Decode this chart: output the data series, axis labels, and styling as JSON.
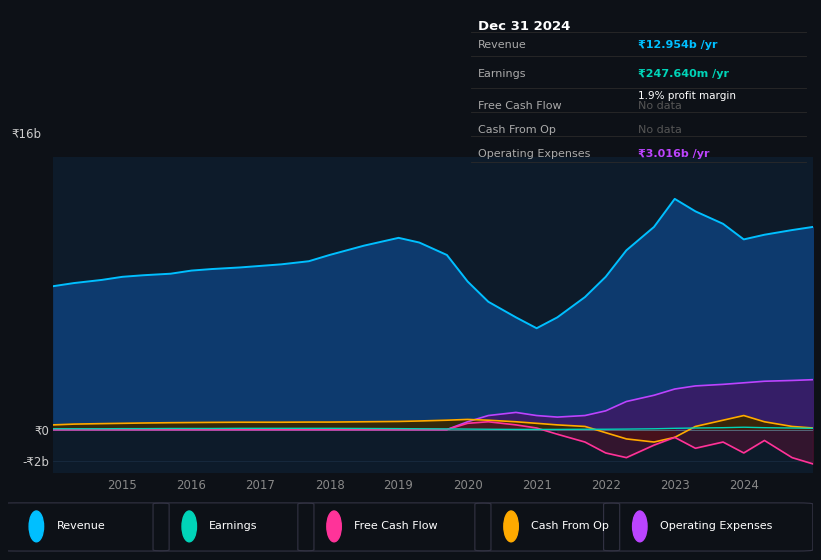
{
  "bg_color": "#0d1117",
  "plot_bg_color": "#0d1b2a",
  "grid_color": "#1a2e45",
  "years": [
    2014.0,
    2014.3,
    2014.7,
    2015.0,
    2015.3,
    2015.7,
    2016.0,
    2016.3,
    2016.7,
    2017.0,
    2017.3,
    2017.7,
    2018.0,
    2018.5,
    2019.0,
    2019.3,
    2019.7,
    2020.0,
    2020.3,
    2020.7,
    2021.0,
    2021.3,
    2021.7,
    2022.0,
    2022.3,
    2022.7,
    2023.0,
    2023.3,
    2023.7,
    2024.0,
    2024.3,
    2024.7,
    2025.0
  ],
  "revenue": [
    9.2,
    9.4,
    9.6,
    9.8,
    9.9,
    10.0,
    10.2,
    10.3,
    10.4,
    10.5,
    10.6,
    10.8,
    11.2,
    11.8,
    12.3,
    12.0,
    11.2,
    9.5,
    8.2,
    7.2,
    6.5,
    7.2,
    8.5,
    9.8,
    11.5,
    13.0,
    14.8,
    14.0,
    13.2,
    12.2,
    12.5,
    12.8,
    13.0
  ],
  "earnings": [
    0.05,
    0.05,
    0.05,
    0.06,
    0.06,
    0.07,
    0.07,
    0.07,
    0.08,
    0.08,
    0.08,
    0.08,
    0.08,
    0.07,
    0.06,
    0.05,
    0.04,
    0.03,
    0.02,
    0.01,
    0.01,
    0.01,
    0.02,
    0.02,
    0.03,
    0.05,
    0.08,
    0.1,
    0.12,
    0.15,
    0.12,
    0.1,
    0.08
  ],
  "free_cash_flow": [
    0.0,
    0.0,
    0.0,
    0.0,
    0.0,
    0.0,
    0.0,
    0.0,
    0.0,
    0.0,
    0.0,
    0.0,
    0.0,
    0.0,
    0.0,
    0.0,
    0.0,
    0.4,
    0.5,
    0.3,
    0.1,
    -0.3,
    -0.8,
    -1.5,
    -1.8,
    -1.0,
    -0.5,
    -1.2,
    -0.8,
    -1.5,
    -0.7,
    -1.8,
    -2.2
  ],
  "cash_from_op": [
    0.3,
    0.35,
    0.38,
    0.4,
    0.42,
    0.44,
    0.45,
    0.46,
    0.47,
    0.47,
    0.47,
    0.48,
    0.48,
    0.5,
    0.52,
    0.55,
    0.6,
    0.65,
    0.6,
    0.5,
    0.4,
    0.3,
    0.2,
    -0.2,
    -0.6,
    -0.8,
    -0.5,
    0.2,
    0.6,
    0.9,
    0.5,
    0.2,
    0.1
  ],
  "operating_expenses": [
    0.0,
    0.0,
    0.0,
    0.0,
    0.0,
    0.0,
    0.0,
    0.0,
    0.0,
    0.0,
    0.0,
    0.0,
    0.0,
    0.0,
    0.0,
    0.0,
    0.0,
    0.5,
    0.9,
    1.1,
    0.9,
    0.8,
    0.9,
    1.2,
    1.8,
    2.2,
    2.6,
    2.8,
    2.9,
    3.0,
    3.1,
    3.15,
    3.2
  ],
  "revenue_color": "#00bfff",
  "revenue_fill": "#0d3a6e",
  "earnings_color": "#00d4b8",
  "fcf_color": "#ff3399",
  "cfo_color": "#ffaa00",
  "opex_color": "#bb44ff",
  "opex_fill": "#3d1a66",
  "cfo_fill_pos": "#3a2800",
  "cfo_fill_neg": "#3a1400",
  "fcf_fill": "#5a1033",
  "ylim_min": -2.8,
  "ylim_max": 17.5,
  "grid_yticks": [
    -2,
    0,
    4,
    8,
    12,
    16
  ],
  "ytick_labels_vals": [
    -2,
    0
  ],
  "ytick_labels_text": [
    "-₹2b",
    "₹0"
  ],
  "y16b_label": "₹16b",
  "xticks": [
    2015,
    2016,
    2017,
    2018,
    2019,
    2020,
    2021,
    2022,
    2023,
    2024
  ],
  "legend_items": [
    "Revenue",
    "Earnings",
    "Free Cash Flow",
    "Cash From Op",
    "Operating Expenses"
  ],
  "legend_colors": [
    "#00bfff",
    "#00d4b8",
    "#ff3399",
    "#ffaa00",
    "#bb44ff"
  ],
  "tooltip_title": "Dec 31 2024",
  "tooltip_rows": [
    {
      "label": "Revenue",
      "value": "₹12.954b /yr",
      "value_color": "#00bfff",
      "note": null
    },
    {
      "label": "Earnings",
      "value": "₹247.640m /yr",
      "value_color": "#00d4b8",
      "note": "1.9% profit margin"
    },
    {
      "label": "Free Cash Flow",
      "value": "No data",
      "value_color": "#555555",
      "note": null
    },
    {
      "label": "Cash From Op",
      "value": "No data",
      "value_color": "#555555",
      "note": null
    },
    {
      "label": "Operating Expenses",
      "value": "₹3.016b /yr",
      "value_color": "#bb44ff",
      "note": null
    }
  ]
}
